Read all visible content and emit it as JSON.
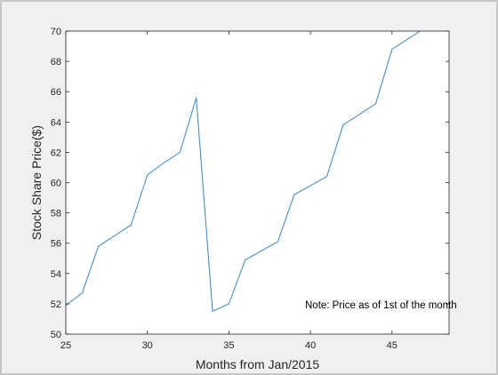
{
  "chart_data": {
    "type": "line",
    "xlabel": "Months from Jan/2015",
    "ylabel": "Stock Share Price($)",
    "xlim": [
      25,
      48.5
    ],
    "ylim": [
      50,
      70
    ],
    "xticks": [
      25,
      30,
      35,
      40,
      45
    ],
    "yticks": [
      50,
      52,
      54,
      56,
      58,
      60,
      62,
      64,
      66,
      68,
      70
    ],
    "grid": false,
    "annotation": "Note: Price as of 1st of the month",
    "series": [
      {
        "color": "#4a90c8",
        "x": [
          25,
          26,
          27,
          28,
          29,
          30,
          31,
          32,
          33,
          34,
          35,
          36,
          37,
          38,
          39,
          40,
          41,
          42,
          43,
          44,
          45,
          46,
          47
        ],
        "y": [
          51.9,
          52.7,
          55.8,
          56.5,
          57.2,
          60.5,
          61.3,
          62.0,
          65.6,
          51.5,
          52.0,
          54.9,
          55.5,
          56.1,
          59.2,
          59.8,
          60.4,
          63.8,
          64.5,
          65.2,
          68.8,
          69.5,
          70.2
        ]
      }
    ]
  }
}
